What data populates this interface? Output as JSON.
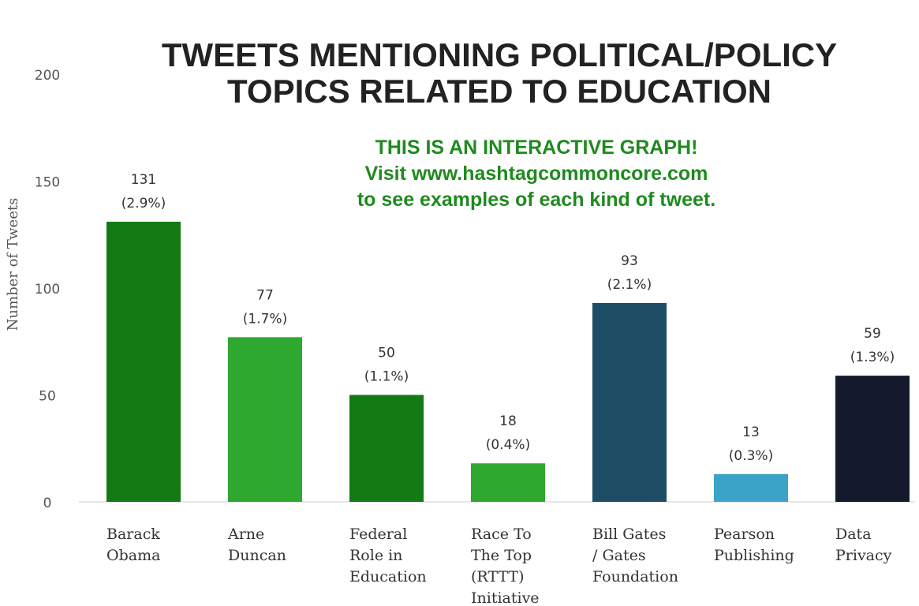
{
  "chart_data": {
    "type": "bar",
    "title": [
      "TWEETS MENTIONING POLITICAL/POLICY",
      "TOPICS RELATED TO EDUCATION"
    ],
    "ylabel": "Number of Tweets",
    "ylim": [
      0,
      200
    ],
    "yticks": [
      0,
      50,
      100,
      150,
      200
    ],
    "grid": false,
    "categories": [
      [
        "Barack",
        "Obama"
      ],
      [
        "Arne",
        "Duncan"
      ],
      [
        "Federal",
        "Role in",
        "Education"
      ],
      [
        "Race To",
        "The Top",
        "(RTTT)",
        "Initiative"
      ],
      [
        "Bill Gates",
        "/ Gates",
        "Foundation"
      ],
      [
        "Pearson",
        "Publishing"
      ],
      [
        "Data",
        "Privacy"
      ]
    ],
    "values": [
      131,
      77,
      50,
      18,
      93,
      13,
      59
    ],
    "percent_labels": [
      "(2.9%)",
      "(1.7%)",
      "(1.1%)",
      "(0.4%)",
      "(2.1%)",
      "(0.3%)",
      "(1.3%)"
    ],
    "colors": [
      "#147a14",
      "#2ea82e",
      "#147a14",
      "#2ea82e",
      "#1d4e66",
      "#3ba3c8",
      "#141a2b"
    ]
  },
  "promo": {
    "line1": "THIS IS AN INTERACTIVE GRAPH!",
    "line2": "Visit www.hashtagcommoncore.com",
    "line3": "to see examples of each kind of tweet."
  }
}
